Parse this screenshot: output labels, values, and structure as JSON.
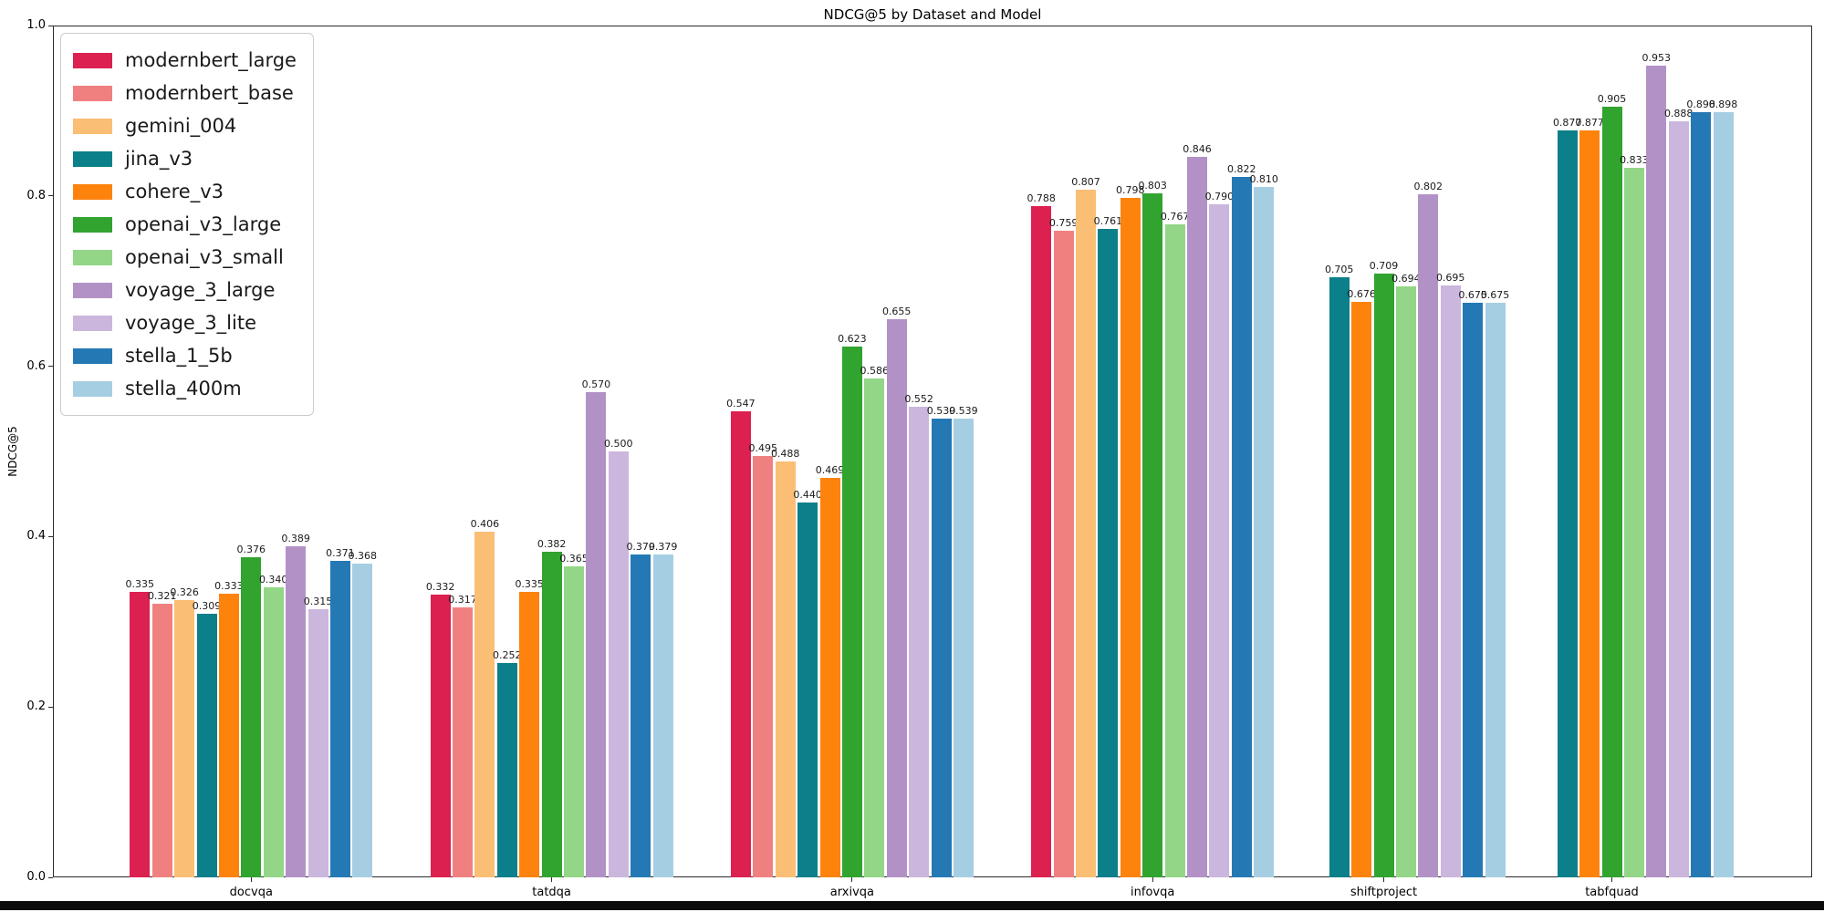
{
  "title": "NDCG@5 by Dataset and Model",
  "y_axis_label": "NDCG@5",
  "chart_data": {
    "type": "bar",
    "title": "NDCG@5 by Dataset and Model",
    "xlabel": "",
    "ylabel": "NDCG@5",
    "ylim": [
      0.0,
      1.0
    ],
    "yticks": [
      "0.0",
      "0.2",
      "0.4",
      "0.6",
      "0.8",
      "1.0"
    ],
    "grid": false,
    "legend_position": "upper left",
    "bar_label_format": "3 decimals above each bar",
    "categories": [
      "docvqa",
      "tatdqa",
      "arxivqa",
      "infovqa",
      "shiftproject",
      "tabfquad"
    ],
    "series": [
      {
        "name": "modernbert_large",
        "color": "#DC2050",
        "values": [
          0.335,
          0.332,
          0.547,
          0.788,
          null,
          null
        ]
      },
      {
        "name": "modernbert_base",
        "color": "#F08080",
        "values": [
          0.321,
          0.317,
          0.495,
          0.759,
          null,
          null
        ]
      },
      {
        "name": "gemini_004",
        "color": "#FBBE75",
        "values": [
          0.326,
          0.406,
          0.488,
          0.807,
          null,
          null
        ]
      },
      {
        "name": "jina_v3",
        "color": "#0B7F8A",
        "values": [
          0.309,
          0.252,
          0.44,
          0.761,
          0.705,
          0.877
        ]
      },
      {
        "name": "cohere_v3",
        "color": "#FD830D",
        "values": [
          0.333,
          0.335,
          0.469,
          0.798,
          0.676,
          0.877
        ]
      },
      {
        "name": "openai_v3_large",
        "color": "#31A32F",
        "values": [
          0.376,
          0.382,
          0.623,
          0.803,
          0.709,
          0.905
        ]
      },
      {
        "name": "openai_v3_small",
        "color": "#93D687",
        "values": [
          0.34,
          0.365,
          0.586,
          0.767,
          0.694,
          0.833
        ]
      },
      {
        "name": "voyage_3_large",
        "color": "#B292C6",
        "values": [
          0.389,
          0.57,
          0.655,
          0.846,
          0.802,
          0.953
        ]
      },
      {
        "name": "voyage_3_lite",
        "color": "#CBB6DD",
        "values": [
          0.315,
          0.5,
          0.552,
          0.79,
          0.695,
          0.888
        ]
      },
      {
        "name": "stella_1_5b",
        "color": "#2479B5",
        "values": [
          0.371,
          0.379,
          0.539,
          0.822,
          0.675,
          0.898
        ]
      },
      {
        "name": "stella_400m",
        "color": "#A6CEE3",
        "values": [
          0.368,
          0.379,
          0.539,
          0.81,
          0.675,
          0.898
        ]
      }
    ]
  }
}
